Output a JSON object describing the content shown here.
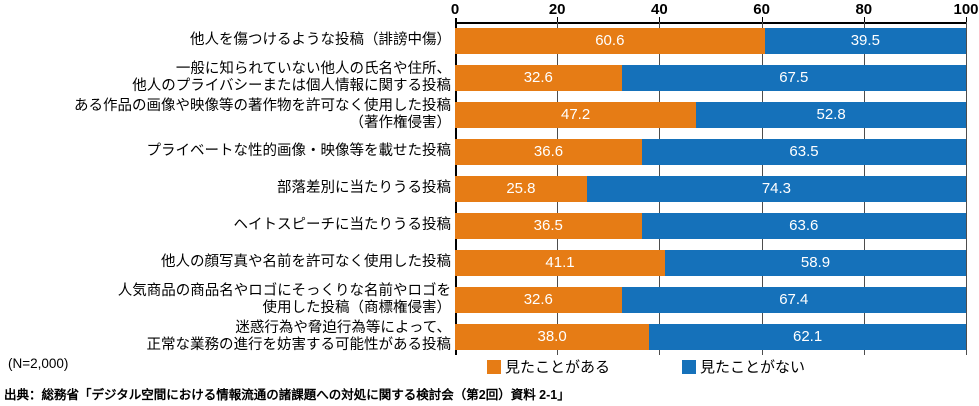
{
  "chart_data": {
    "type": "bar",
    "orientation": "horizontal",
    "stacked": true,
    "title": "",
    "xlabel": "",
    "ylabel": "",
    "xlim": [
      0,
      100
    ],
    "x_ticks": [
      "0",
      "20",
      "40",
      "60",
      "80",
      "100"
    ],
    "grid": true,
    "legend_position": "bottom",
    "categories": [
      "他人を傷つけるような投稿（誹謗中傷）",
      "一般に知られていない他人の氏名や住所、他人のプライバシーまたは個人情報に関する投稿",
      "ある作品の画像や映像等の著作物を許可なく使用した投稿（著作権侵害）",
      "プライベートな性的画像・映像等を載せた投稿",
      "部落差別に当たりうる投稿",
      "ヘイトスピーチに当たりうる投稿",
      "他人の顔写真や名前を許可なく使用した投稿",
      "人気商品の商品名やロゴにそっくりな名前やロゴを使用した投稿（商標権侵害）",
      "迷惑行為や脅迫行為等によって、正常な業務の進行を妨害する可能性がある投稿"
    ],
    "category_lines": [
      [
        "他人を傷つけるような投稿（誹謗中傷）"
      ],
      [
        "一般に知られていない他人の氏名や住所、",
        "他人のプライバシーまたは個人情報に関する投稿"
      ],
      [
        "ある作品の画像や映像等の著作物を許可なく使用した投稿",
        "（著作権侵害）"
      ],
      [
        "プライベートな性的画像・映像等を載せた投稿"
      ],
      [
        "部落差別に当たりうる投稿"
      ],
      [
        "ヘイトスピーチに当たりうる投稿"
      ],
      [
        "他人の顔写真や名前を許可なく使用した投稿"
      ],
      [
        "人気商品の商品名やロゴにそっくりな名前やロゴを",
        "使用した投稿（商標権侵害）"
      ],
      [
        "迷惑行為や脅迫行為等によって、",
        "正常な業務の進行を妨害する可能性がある投稿"
      ]
    ],
    "series": [
      {
        "name": "見たことがある",
        "color": "#E67C15",
        "values": [
          60.6,
          32.6,
          47.2,
          36.6,
          25.8,
          36.5,
          41.1,
          32.6,
          38.0
        ],
        "labels": [
          "60.6",
          "32.6",
          "47.2",
          "36.6",
          "25.8",
          "36.5",
          "41.1",
          "32.6",
          "38.0"
        ]
      },
      {
        "name": "見たことがない",
        "color": "#1571BA",
        "values": [
          39.5,
          67.5,
          52.8,
          63.5,
          74.3,
          63.6,
          58.9,
          67.4,
          62.1
        ],
        "labels": [
          "39.5",
          "67.5",
          "52.8",
          "63.5",
          "74.3",
          "63.6",
          "58.9",
          "67.4",
          "62.1"
        ]
      }
    ]
  },
  "legend": {
    "items": [
      {
        "label": "見たことがある",
        "color": "#E67C15"
      },
      {
        "label": "見たことがない",
        "color": "#1571BA"
      }
    ]
  },
  "footnotes": {
    "sample_size": "(N=2,000)",
    "source": "出典：総務省「デジタル空間における情報流通の諸課題への対処に関する検討会（第2回）資料 2-1」"
  }
}
